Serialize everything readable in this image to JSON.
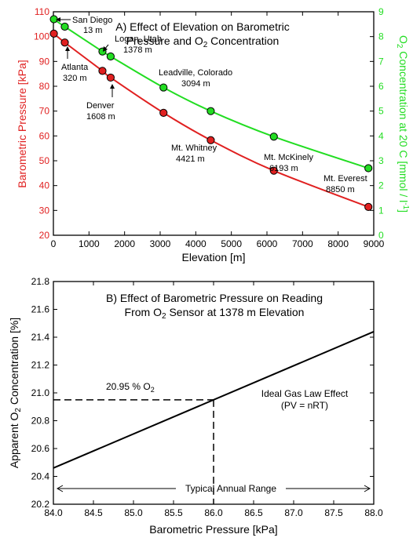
{
  "chart_data": [
    {
      "type": "line",
      "title_lines": [
        "A) Effect of Elevation on Barometric",
        "Pressure and O2 Concentration"
      ],
      "xlabel": "Elevation [m]",
      "ylabel_left": "Barometric Pressure [kPa]",
      "ylabel_right": "O2 Concentration at 20 C [mmol / l-1]",
      "xlim": [
        0,
        9000
      ],
      "ylim_left": [
        20,
        110
      ],
      "ylim_right": [
        0,
        9
      ],
      "x_ticks": [
        "0",
        "1000",
        "2000",
        "3000",
        "4000",
        "5000",
        "6000",
        "7000",
        "8000",
        "9000"
      ],
      "y_ticks_left": [
        "20",
        "30",
        "40",
        "50",
        "60",
        "70",
        "80",
        "90",
        "100",
        "110"
      ],
      "y_ticks_right": [
        "0",
        "1",
        "2",
        "3",
        "4",
        "5",
        "6",
        "7",
        "8",
        "9"
      ],
      "colors": {
        "pressure": "#e02020",
        "oxygen": "#22dd22",
        "right_axis": "#22dd22",
        "left_axis": "#e02020"
      },
      "series": [
        {
          "name": "Barometric Pressure",
          "axis": "left",
          "x": [
            13,
            320,
            1378,
            1608,
            3094,
            4421,
            6193,
            8850
          ],
          "y": [
            101.2,
            97.6,
            86.2,
            83.5,
            69.3,
            58.3,
            46.0,
            31.4
          ]
        },
        {
          "name": "O2 Concentration",
          "axis": "right",
          "x": [
            13,
            320,
            1378,
            1608,
            3094,
            4421,
            6193,
            8850
          ],
          "y": [
            8.7,
            8.4,
            7.4,
            7.2,
            5.95,
            5.0,
            3.97,
            2.7
          ]
        }
      ],
      "annotations": [
        {
          "lines": [
            "San Diego",
            "13 m"
          ]
        },
        {
          "lines": [
            "Atlanta",
            "320 m"
          ]
        },
        {
          "lines": [
            "Logan, Utah",
            "1378 m"
          ]
        },
        {
          "lines": [
            "Denver",
            "1608 m"
          ]
        },
        {
          "lines": [
            "Leadville, Colorado",
            "3094 m"
          ]
        },
        {
          "lines": [
            "Mt. Whitney",
            "4421 m"
          ]
        },
        {
          "lines": [
            "Mt. McKinely",
            "6193 m"
          ]
        },
        {
          "lines": [
            "Mt. Everest",
            "8850 m"
          ]
        }
      ]
    },
    {
      "type": "line",
      "title_lines": [
        "B) Effect of Barometric Pressure on Reading",
        "From O2 Sensor at 1378 m Elevation"
      ],
      "xlabel": "Barometric Pressure [kPa]",
      "ylabel": "Apparent O2 Concentration [%]",
      "xlim": [
        84.0,
        88.0
      ],
      "ylim": [
        20.2,
        21.8
      ],
      "x_ticks": [
        "84.0",
        "84.5",
        "85.0",
        "85.5",
        "86.0",
        "86.5",
        "87.0",
        "87.5",
        "88.0"
      ],
      "y_ticks": [
        "20.2",
        "20.4",
        "20.6",
        "20.8",
        "21.0",
        "21.2",
        "21.4",
        "21.6",
        "21.8"
      ],
      "series": [
        {
          "name": "Ideal Gas Law Effect",
          "x": [
            84.0,
            88.0
          ],
          "y": [
            20.46,
            21.44
          ]
        }
      ],
      "reference": {
        "x": 86.0,
        "y": 20.95,
        "label": "20.95 % O2"
      },
      "effect_label_lines": [
        "Ideal Gas Law Effect",
        "(PV = nRT)"
      ],
      "range_label": "Typical Annual Range"
    }
  ]
}
